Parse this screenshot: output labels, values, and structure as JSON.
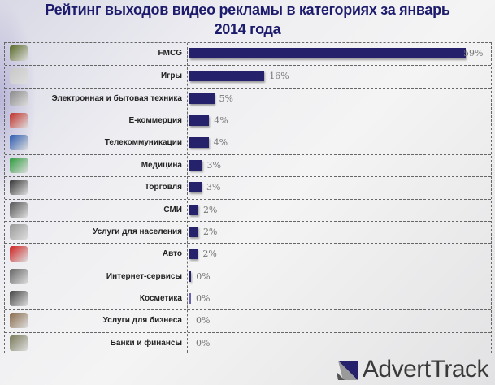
{
  "chart_data": {
    "type": "bar",
    "orientation": "horizontal",
    "title": "Рейтинг выходов видео рекламы в категориях за январь 2014 года",
    "title_lines": [
      "Рейтинг выходов видео рекламы в категориях за январь",
      "2014 года"
    ],
    "unit": "%",
    "categories": [
      "FMCG",
      "Игры",
      "Электронная и бытовая техника",
      "Е-коммерция",
      "Телекоммуникации",
      "Медицина",
      "Торговля",
      "СМИ",
      "Услуги для населения",
      "Авто",
      "Интернет-сервисы",
      "Косметика",
      "Услуги для бизнеса",
      "Банки и финансы"
    ],
    "values": [
      59,
      16,
      5.3,
      4.2,
      4.1,
      2.7,
      2.6,
      1.9,
      1.9,
      1.8,
      0.4,
      0.3,
      0,
      0
    ],
    "data_labels": [
      "59%",
      "16%",
      "5%",
      "4%",
      "4%",
      "3%",
      "3%",
      "2%",
      "2%",
      "2%",
      "0%",
      "0%",
      "0%",
      "0%"
    ],
    "icons": [
      "grocery-basket-icon",
      "gamepad-icon",
      "appliance-icon",
      "ecommerce-icon",
      "globe-telecom-icon",
      "medical-cross-icon",
      "shop-icon",
      "newspaper-icon",
      "services-icon",
      "car-icon",
      "internet-icon",
      "cosmetics-icon",
      "business-handshake-icon",
      "bank-money-icon"
    ],
    "icon_colors": [
      "#5a6a2a",
      "#c8c8c8",
      "#8a8a8a",
      "#c0302a",
      "#2a5ab0",
      "#2a9a3a",
      "#333333",
      "#555555",
      "#999999",
      "#d02020",
      "#666666",
      "#444444",
      "#8a6a4a",
      "#7a7a5a"
    ],
    "bar_color": "#25216a",
    "xlim": [
      0,
      60
    ],
    "grid": false
  },
  "brand": {
    "name": "AdvertTrack"
  }
}
